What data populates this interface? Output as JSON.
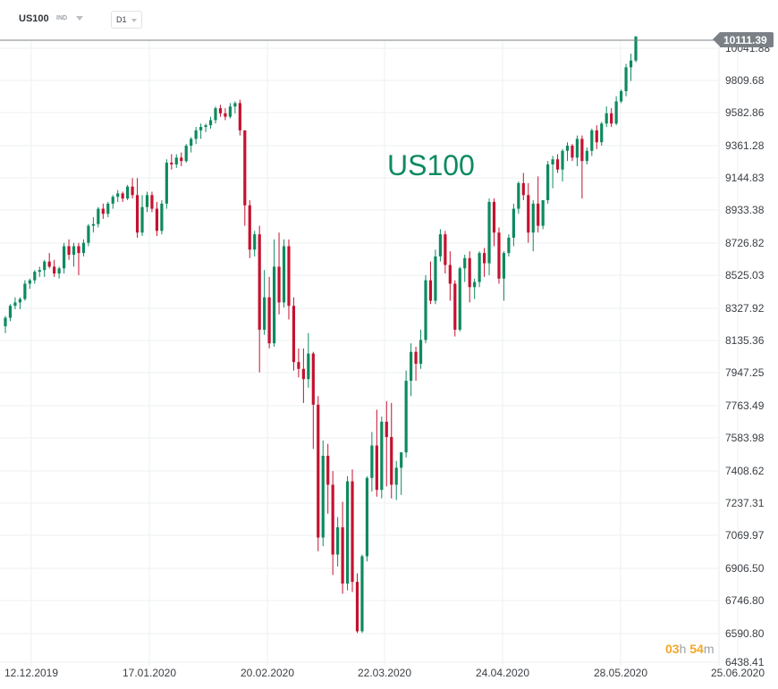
{
  "toolbar": {
    "symbol": "US100",
    "market": "IND",
    "timeframe": "D1",
    "icons": {
      "market_dropdown": "chevron-down-icon",
      "timeframe_dropdown": "chevron-down-icon"
    }
  },
  "watermark": "US100",
  "current_price": "10111.39",
  "countdown": {
    "hours": "03",
    "hours_unit": "h",
    "minutes": "54",
    "minutes_unit": "m"
  },
  "colors": {
    "up": "#0e8a5f",
    "down": "#c4122f",
    "price_line": "#7b8086",
    "grid": "#eef0f2",
    "countdown": "#f5a623"
  },
  "chart_data": {
    "type": "candlestick",
    "title": "",
    "xlabel": "",
    "ylabel": "",
    "ylim": [
      6438.41,
      10111.39
    ],
    "y_ticks": [
      "10041.88",
      "9809.68",
      "9582.86",
      "9361.28",
      "9144.83",
      "8933.38",
      "8726.82",
      "8525.03",
      "8327.92",
      "8135.36",
      "7947.25",
      "7763.49",
      "7583.98",
      "7408.62",
      "7237.31",
      "7069.97",
      "6906.50",
      "6746.80",
      "6590.80",
      "6438.41"
    ],
    "x_ticks": [
      "12.12.2019",
      "17.01.2020",
      "20.02.2020",
      "22.03.2020",
      "24.04.2020",
      "28.05.2020",
      "25.06.2020"
    ],
    "grid": true,
    "series": [
      {
        "values": [
          [
            8410,
            8470,
            8370,
            8460
          ],
          [
            8460,
            8540,
            8440,
            8530
          ],
          [
            8530,
            8580,
            8510,
            8550
          ],
          [
            8550,
            8580,
            8510,
            8570
          ],
          [
            8570,
            8680,
            8560,
            8660
          ],
          [
            8660,
            8690,
            8630,
            8680
          ],
          [
            8680,
            8740,
            8660,
            8730
          ],
          [
            8730,
            8760,
            8700,
            8740
          ],
          [
            8740,
            8800,
            8700,
            8790
          ],
          [
            8790,
            8840,
            8750,
            8760
          ],
          [
            8760,
            8800,
            8700,
            8720
          ],
          [
            8720,
            8760,
            8690,
            8750
          ],
          [
            8750,
            8900,
            8720,
            8880
          ],
          [
            8880,
            8920,
            8800,
            8830
          ],
          [
            8830,
            8900,
            8760,
            8880
          ],
          [
            8880,
            8900,
            8710,
            8840
          ],
          [
            8840,
            8920,
            8820,
            8900
          ],
          [
            8900,
            9010,
            8880,
            9000
          ],
          [
            9000,
            9050,
            8960,
            9010
          ],
          [
            9010,
            9110,
            8990,
            9100
          ],
          [
            9100,
            9130,
            9040,
            9070
          ],
          [
            9070,
            9140,
            9050,
            9130
          ],
          [
            9130,
            9180,
            9100,
            9170
          ],
          [
            9170,
            9210,
            9140,
            9190
          ],
          [
            9190,
            9200,
            9140,
            9160
          ],
          [
            9160,
            9240,
            9150,
            9230
          ],
          [
            9230,
            9280,
            9160,
            9180
          ],
          [
            9180,
            9280,
            8930,
            8960
          ],
          [
            8960,
            9180,
            8940,
            9110
          ],
          [
            9110,
            9200,
            9080,
            9180
          ],
          [
            9180,
            9200,
            9080,
            9100
          ],
          [
            9100,
            9140,
            8940,
            8970
          ],
          [
            8970,
            9150,
            8950,
            9130
          ],
          [
            9130,
            9390,
            9100,
            9370
          ],
          [
            9370,
            9420,
            9330,
            9360
          ],
          [
            9360,
            9420,
            9340,
            9400
          ],
          [
            9400,
            9430,
            9350,
            9380
          ],
          [
            9380,
            9480,
            9370,
            9470
          ],
          [
            9470,
            9520,
            9430,
            9510
          ],
          [
            9510,
            9580,
            9480,
            9560
          ],
          [
            9560,
            9600,
            9510,
            9580
          ],
          [
            9580,
            9600,
            9550,
            9590
          ],
          [
            9590,
            9640,
            9570,
            9620
          ],
          [
            9620,
            9700,
            9600,
            9690
          ],
          [
            9690,
            9710,
            9640,
            9660
          ],
          [
            9660,
            9690,
            9620,
            9640
          ],
          [
            9640,
            9720,
            9630,
            9700
          ],
          [
            9700,
            9730,
            9660,
            9720
          ],
          [
            9720,
            9740,
            9530,
            9560
          ],
          [
            9560,
            9560,
            9000,
            9120
          ],
          [
            9120,
            9150,
            8810,
            8860
          ],
          [
            8860,
            8970,
            8820,
            8950
          ],
          [
            8950,
            9000,
            8140,
            8390
          ],
          [
            8390,
            8740,
            8360,
            8580
          ],
          [
            8580,
            8700,
            8280,
            8310
          ],
          [
            8310,
            8920,
            8290,
            8760
          ],
          [
            8760,
            8960,
            8480,
            8550
          ],
          [
            8550,
            8920,
            8520,
            8880
          ],
          [
            8880,
            8920,
            8450,
            8530
          ],
          [
            8530,
            8580,
            8150,
            8200
          ],
          [
            8200,
            8280,
            8110,
            8160
          ],
          [
            8160,
            8280,
            7960,
            8100
          ],
          [
            8100,
            8370,
            8050,
            8250
          ],
          [
            8250,
            8260,
            7690,
            7950
          ],
          [
            7950,
            8000,
            7090,
            7170
          ],
          [
            7170,
            7740,
            7120,
            7650
          ],
          [
            7650,
            7720,
            7310,
            7480
          ],
          [
            7480,
            7560,
            6950,
            7070
          ],
          [
            7070,
            7290,
            7000,
            7230
          ],
          [
            7230,
            7380,
            6840,
            6900
          ],
          [
            6900,
            7530,
            6860,
            7500
          ],
          [
            7500,
            7570,
            6850,
            6910
          ],
          [
            6910,
            6960,
            6610,
            6620
          ],
          [
            6620,
            7070,
            6610,
            7060
          ],
          [
            7060,
            7530,
            7030,
            7520
          ],
          [
            7520,
            7790,
            7440,
            7710
          ],
          [
            7710,
            7920,
            7410,
            7450
          ],
          [
            7450,
            7880,
            7400,
            7850
          ],
          [
            7850,
            7970,
            7470,
            7760
          ],
          [
            7760,
            7960,
            7400,
            7480
          ],
          [
            7480,
            7620,
            7390,
            7580
          ],
          [
            7580,
            7670,
            7420,
            7670
          ],
          [
            7670,
            8150,
            7640,
            8090
          ],
          [
            8090,
            8310,
            8000,
            8260
          ],
          [
            8260,
            8290,
            8090,
            8190
          ],
          [
            8190,
            8390,
            8160,
            8330
          ],
          [
            8330,
            8710,
            8310,
            8680
          ],
          [
            8680,
            8790,
            8540,
            8560
          ],
          [
            8560,
            8860,
            8540,
            8820
          ],
          [
            8820,
            8980,
            8790,
            8950
          ],
          [
            8950,
            8970,
            8720,
            8770
          ],
          [
            8770,
            8850,
            8560,
            8660
          ],
          [
            8660,
            8680,
            8350,
            8390
          ],
          [
            8390,
            8760,
            8380,
            8750
          ],
          [
            8750,
            8830,
            8670,
            8810
          ],
          [
            8810,
            8850,
            8550,
            8640
          ],
          [
            8640,
            8690,
            8570,
            8670
          ],
          [
            8670,
            8850,
            8640,
            8840
          ],
          [
            8840,
            8870,
            8700,
            8780
          ],
          [
            8780,
            9160,
            8710,
            9140
          ],
          [
            9140,
            9160,
            8880,
            8960
          ],
          [
            8960,
            8990,
            8660,
            8690
          ],
          [
            8690,
            8850,
            8560,
            8840
          ],
          [
            8840,
            8950,
            8820,
            8930
          ],
          [
            8930,
            9130,
            8880,
            9100
          ],
          [
            9100,
            9260,
            9070,
            9250
          ],
          [
            9250,
            9310,
            9150,
            9180
          ],
          [
            9180,
            9250,
            8900,
            8960
          ],
          [
            8960,
            9150,
            8850,
            9130
          ],
          [
            9130,
            9290,
            8960,
            9000
          ],
          [
            9000,
            9150,
            8980,
            9150
          ],
          [
            9150,
            9380,
            9130,
            9360
          ],
          [
            9360,
            9410,
            9220,
            9390
          ],
          [
            9390,
            9420,
            9310,
            9330
          ],
          [
            9330,
            9450,
            9260,
            9440
          ],
          [
            9440,
            9490,
            9380,
            9470
          ],
          [
            9470,
            9480,
            9380,
            9400
          ],
          [
            9400,
            9530,
            9350,
            9510
          ],
          [
            9510,
            9530,
            9160,
            9380
          ],
          [
            9380,
            9460,
            9360,
            9440
          ],
          [
            9440,
            9570,
            9410,
            9560
          ],
          [
            9560,
            9590,
            9450,
            9490
          ],
          [
            9490,
            9610,
            9470,
            9600
          ],
          [
            9600,
            9700,
            9580,
            9660
          ],
          [
            9660,
            9690,
            9580,
            9600
          ],
          [
            9600,
            9760,
            9590,
            9730
          ],
          [
            9730,
            9800,
            9720,
            9790
          ],
          [
            9790,
            9950,
            9760,
            9930
          ],
          [
            9930,
            10010,
            9850,
            9970
          ],
          [
            9970,
            10111.39,
            9960,
            10111.39
          ]
        ]
      }
    ]
  }
}
